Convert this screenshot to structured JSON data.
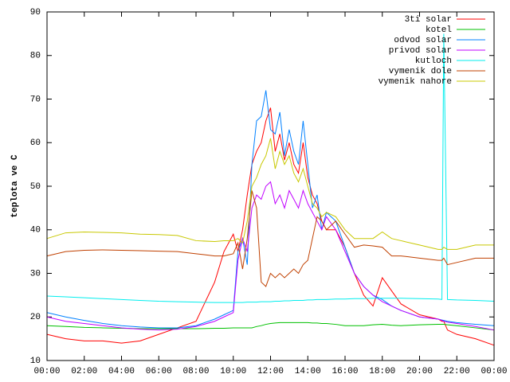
{
  "chart_data": {
    "type": "line",
    "ylabel": "teplota ve C",
    "legend": "top right",
    "xlim": [
      0,
      24
    ],
    "xticks": [
      {
        "value": 0,
        "label": "00:00"
      },
      {
        "value": 2,
        "label": "02:00"
      },
      {
        "value": 4,
        "label": "04:00"
      },
      {
        "value": 6,
        "label": "06:00"
      },
      {
        "value": 8,
        "label": "08:00"
      },
      {
        "value": 10,
        "label": "10:00"
      },
      {
        "value": 12,
        "label": "12:00"
      },
      {
        "value": 14,
        "label": "14:00"
      },
      {
        "value": 16,
        "label": "16:00"
      },
      {
        "value": 18,
        "label": "18:00"
      },
      {
        "value": 20,
        "label": "20:00"
      },
      {
        "value": 22,
        "label": "22:00"
      },
      {
        "value": 24,
        "label": "00:00"
      }
    ],
    "ylim": [
      10,
      90
    ],
    "yticks": [
      10,
      20,
      30,
      40,
      50,
      60,
      70,
      80,
      90
    ],
    "x": [
      0,
      1,
      2,
      3,
      4,
      5,
      6,
      7,
      8,
      9,
      9.5,
      10,
      10.25,
      10.5,
      10.75,
      11,
      11.25,
      11.5,
      11.75,
      12,
      12.25,
      12.5,
      12.75,
      13,
      13.25,
      13.5,
      13.75,
      14,
      14.25,
      14.5,
      14.75,
      15,
      15.5,
      16,
      16.5,
      17,
      17.5,
      18,
      18.5,
      19,
      20,
      21,
      21.2,
      21.3,
      21.5,
      22,
      23,
      24
    ],
    "series": [
      {
        "name": "3ti solar",
        "color": "#ff0000",
        "values": [
          16,
          15,
          14.5,
          14.5,
          14,
          14.5,
          16,
          17.5,
          19,
          28,
          35,
          39,
          35,
          40,
          48,
          55,
          58,
          60,
          65,
          68,
          58,
          62,
          56,
          60,
          55,
          53,
          60,
          52,
          48,
          46,
          42,
          40,
          40,
          36,
          30,
          25,
          22.5,
          29,
          26,
          23,
          20.5,
          19.5,
          19,
          19,
          17,
          16,
          15,
          13.5
        ]
      },
      {
        "name": "kotel",
        "color": "#00c000",
        "values": [
          18,
          17.8,
          17.6,
          17.5,
          17.4,
          17.3,
          17.3,
          17.3,
          17.3,
          17.4,
          17.4,
          17.5,
          17.5,
          17.5,
          17.5,
          17.5,
          17.8,
          18,
          18.3,
          18.5,
          18.6,
          18.7,
          18.7,
          18.7,
          18.7,
          18.7,
          18.7,
          18.7,
          18.6,
          18.6,
          18.5,
          18.5,
          18.3,
          18,
          18,
          18,
          18.2,
          18.3,
          18.1,
          18,
          18.2,
          18.3,
          18.3,
          18.3,
          18.2,
          18,
          17.5,
          17
        ]
      },
      {
        "name": "odvod solar",
        "color": "#0080ff",
        "values": [
          21,
          20,
          19.2,
          18.5,
          18,
          17.7,
          17.5,
          17.5,
          18,
          19.5,
          20.5,
          21.5,
          35,
          38,
          32,
          55,
          65,
          66,
          72,
          63,
          62,
          67,
          57,
          63,
          58,
          55,
          65,
          55,
          45,
          48,
          40,
          44,
          42,
          36,
          30,
          27,
          25,
          24,
          22.5,
          21.5,
          20,
          19.5,
          19.3,
          19.2,
          19,
          18.7,
          18.3,
          18
        ]
      },
      {
        "name": "privod solar",
        "color": "#c000ff",
        "values": [
          20,
          19,
          18.5,
          18,
          17.5,
          17.2,
          17,
          17.2,
          17.8,
          19,
          20,
          21,
          33,
          38,
          35,
          45,
          48,
          47,
          50,
          51,
          46,
          48,
          45,
          49,
          47,
          45,
          49,
          46,
          44,
          42,
          40,
          43,
          40,
          35,
          30,
          27,
          25,
          23.5,
          22.5,
          21.5,
          20,
          19.5,
          19.2,
          19,
          18.8,
          18.5,
          17.8,
          17
        ]
      },
      {
        "name": "kutloch",
        "color": "#00eeee",
        "values": [
          24.8,
          24.6,
          24.4,
          24.2,
          24,
          23.8,
          23.6,
          23.5,
          23.4,
          23.3,
          23.3,
          23.3,
          23.3,
          23.3,
          23.4,
          23.4,
          23.4,
          23.5,
          23.5,
          23.5,
          23.6,
          23.6,
          23.7,
          23.7,
          23.8,
          23.8,
          23.8,
          23.9,
          23.9,
          24,
          24,
          24,
          24.1,
          24.1,
          24.2,
          24.2,
          24.3,
          24.3,
          24.3,
          24.3,
          24.2,
          24.1,
          24,
          85,
          24,
          23.9,
          23.8,
          23.6
        ]
      },
      {
        "name": "vymenik dole",
        "color": "#c04000",
        "values": [
          34,
          35,
          35.3,
          35.4,
          35.3,
          35.2,
          35.1,
          35,
          34.5,
          34,
          34,
          34.5,
          37,
          31,
          38,
          49,
          45,
          28,
          27,
          30,
          29,
          30,
          29,
          30,
          31,
          30,
          32,
          33,
          38,
          43,
          42,
          40,
          42,
          39,
          36,
          36.5,
          36.3,
          36,
          34,
          34,
          33.5,
          33,
          33,
          33.5,
          32,
          32.5,
          33.5,
          33.5
        ]
      },
      {
        "name": "vymenik nahore",
        "color": "#c8c800",
        "values": [
          38,
          39.3,
          39.5,
          39.4,
          39.3,
          39,
          38.9,
          38.7,
          37.5,
          37.3,
          37.5,
          37.5,
          38,
          37,
          42,
          50,
          52,
          55,
          57,
          61,
          54,
          58,
          55,
          57,
          53,
          51,
          54,
          50,
          46,
          45,
          43,
          44,
          43,
          40,
          38,
          38,
          38,
          39.5,
          38,
          37.5,
          36.5,
          35.5,
          35.5,
          36,
          35.5,
          35.5,
          36.5,
          36.5
        ]
      }
    ]
  }
}
